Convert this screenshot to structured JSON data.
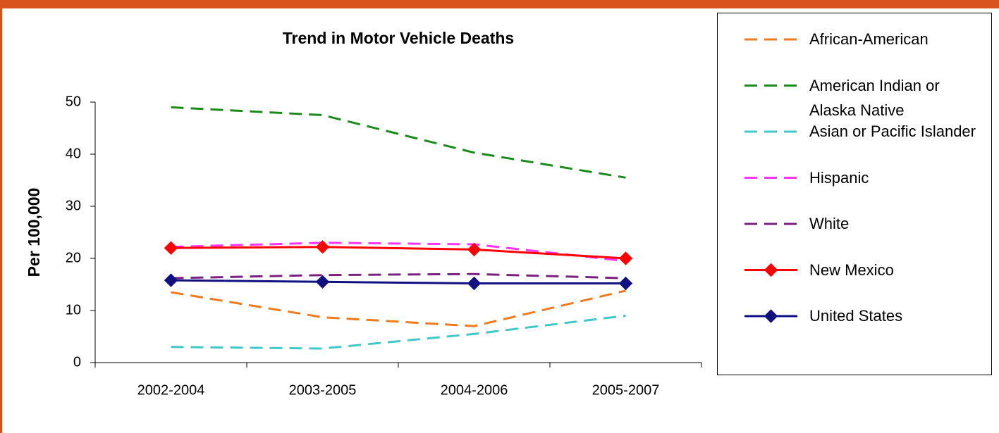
{
  "chart_data": {
    "type": "line",
    "title": "Trend in Motor Vehicle Deaths",
    "y_label": "Per 100,000",
    "categories": [
      "2002-2004",
      "2003-2005",
      "2004-2006",
      "2005-2007"
    ],
    "ylim": [
      0,
      50
    ],
    "yticks": [
      0,
      10,
      20,
      30,
      40,
      50
    ],
    "grid": false,
    "legend": "right",
    "series": [
      {
        "name": "African-American",
        "color": "#f07a1e",
        "dashed": true,
        "values": [
          13.5,
          8.7,
          7.0,
          13.8
        ]
      },
      {
        "name": "American Indian or Alaska Native",
        "color": "#1a8a1a",
        "dashed": true,
        "values": [
          49,
          47.5,
          40.3,
          35.5
        ]
      },
      {
        "name": "Asian or Pacific Islander",
        "color": "#40c8c8",
        "dashed": true,
        "values": [
          3,
          2.7,
          5.5,
          9
        ]
      },
      {
        "name": "Hispanic",
        "color": "#ff33ff",
        "dashed": true,
        "values": [
          22.2,
          23,
          22.7,
          19.5
        ]
      },
      {
        "name": "White",
        "color": "#7b2080",
        "dashed": true,
        "values": [
          16.2,
          16.8,
          17,
          16.2
        ]
      },
      {
        "name": "New Mexico",
        "color": "#ff0000",
        "dashed": false,
        "marker": "diamond",
        "values": [
          22,
          22.2,
          21.7,
          20
        ]
      },
      {
        "name": "United States",
        "color": "#101080",
        "dashed": false,
        "marker": "diamond",
        "values": [
          15.8,
          15.5,
          15.2,
          15.2
        ]
      }
    ]
  }
}
